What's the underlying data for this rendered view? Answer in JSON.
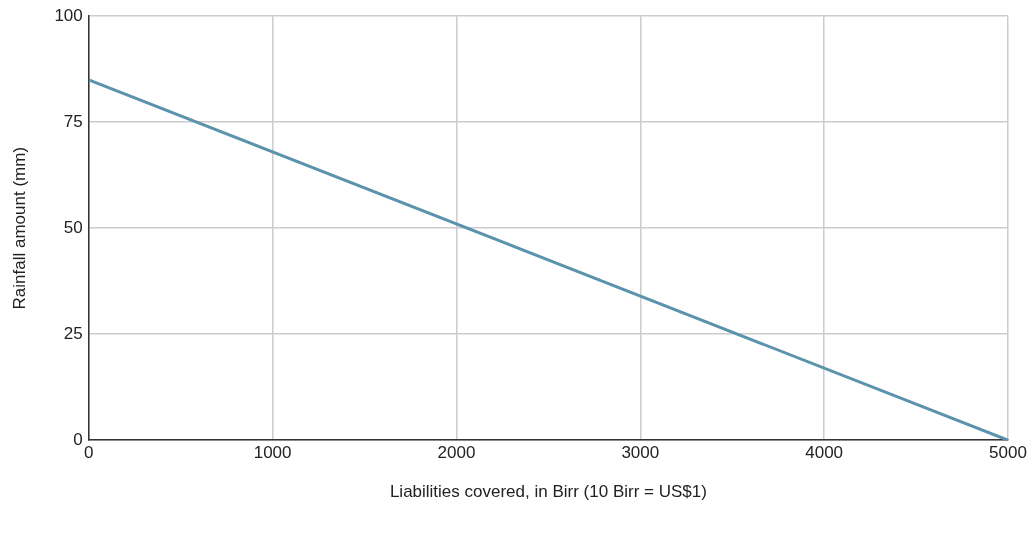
{
  "chart_data": {
    "type": "line",
    "xlabel": "Liabilities covered, in Birr (10 Birr = US$1)",
    "ylabel": "Rainfall amount (mm)",
    "x": [
      0,
      5000
    ],
    "series": [
      {
        "color": "#5b92ac",
        "values": [
          85,
          0
        ]
      }
    ],
    "xlim": [
      0,
      5000
    ],
    "xticks": [
      0,
      1000,
      2000,
      3000,
      4000,
      5000
    ],
    "ylim": [
      0,
      100
    ],
    "yticks": [
      0,
      25,
      50,
      75,
      100
    ],
    "grid": true,
    "legend": false,
    "marker": "none",
    "line_style": "solid"
  }
}
